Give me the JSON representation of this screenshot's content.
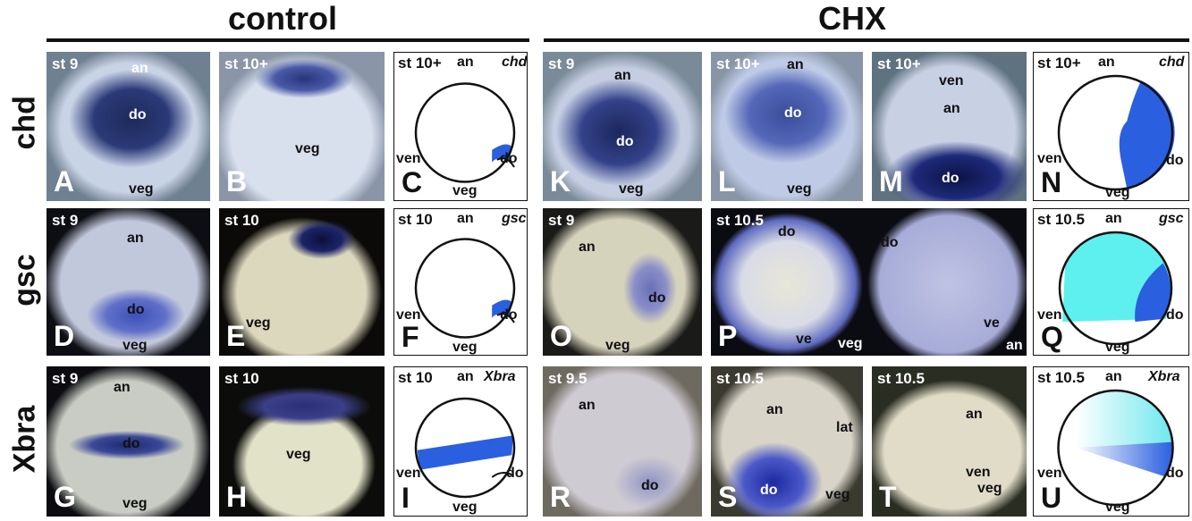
{
  "header": {
    "control": "control",
    "chx": "CHX"
  },
  "row_labels": [
    "chd",
    "gsc",
    "Xbra"
  ],
  "panels": [
    {
      "letter": "A",
      "labels": [
        "st 9",
        "an",
        "do",
        "veg"
      ]
    },
    {
      "letter": "B",
      "labels": [
        "st 10+",
        "veg"
      ]
    },
    {
      "letter": "C",
      "labels": [
        "st 10+",
        "an",
        "chd",
        "ven",
        "do",
        "veg"
      ]
    },
    {
      "letter": "K",
      "labels": [
        "st 9",
        "an",
        "do",
        "veg"
      ]
    },
    {
      "letter": "L",
      "labels": [
        "st 10+",
        "an",
        "do",
        "veg"
      ]
    },
    {
      "letter": "M",
      "labels": [
        "st 10+",
        "ven",
        "an",
        "do"
      ]
    },
    {
      "letter": "N",
      "labels": [
        "st 10+",
        "an",
        "chd",
        "ven",
        "do",
        "veg"
      ]
    },
    {
      "letter": "D",
      "labels": [
        "st 9",
        "an",
        "do",
        "veg"
      ]
    },
    {
      "letter": "E",
      "labels": [
        "st 10",
        "veg"
      ]
    },
    {
      "letter": "F",
      "labels": [
        "st 10",
        "an",
        "gsc",
        "ven",
        "do",
        "veg"
      ]
    },
    {
      "letter": "O",
      "labels": [
        "st 9",
        "an",
        "do",
        "veg"
      ]
    },
    {
      "letter": "P",
      "labels": [
        "st 10.5",
        "do",
        "ve",
        "veg",
        "do",
        "ve",
        "an"
      ]
    },
    {
      "letter": "Q",
      "labels": [
        "st 10.5",
        "an",
        "gsc",
        "ven",
        "do",
        "veg"
      ]
    },
    {
      "letter": "G",
      "labels": [
        "st 9",
        "an",
        "do",
        "veg"
      ]
    },
    {
      "letter": "H",
      "labels": [
        "st 10",
        "veg"
      ]
    },
    {
      "letter": "I",
      "labels": [
        "st 10",
        "an",
        "Xbra",
        "ven",
        "do",
        "veg"
      ]
    },
    {
      "letter": "R",
      "labels": [
        "st 9.5",
        "an",
        "do"
      ]
    },
    {
      "letter": "S",
      "labels": [
        "st 10.5",
        "an",
        "lat",
        "do",
        "veg"
      ]
    },
    {
      "letter": "T",
      "labels": [
        "st 10.5",
        "an",
        "ven",
        "veg"
      ]
    },
    {
      "letter": "U",
      "labels": [
        "st 10.5",
        "an",
        "Xbra",
        "ven",
        "do",
        "veg"
      ]
    }
  ]
}
